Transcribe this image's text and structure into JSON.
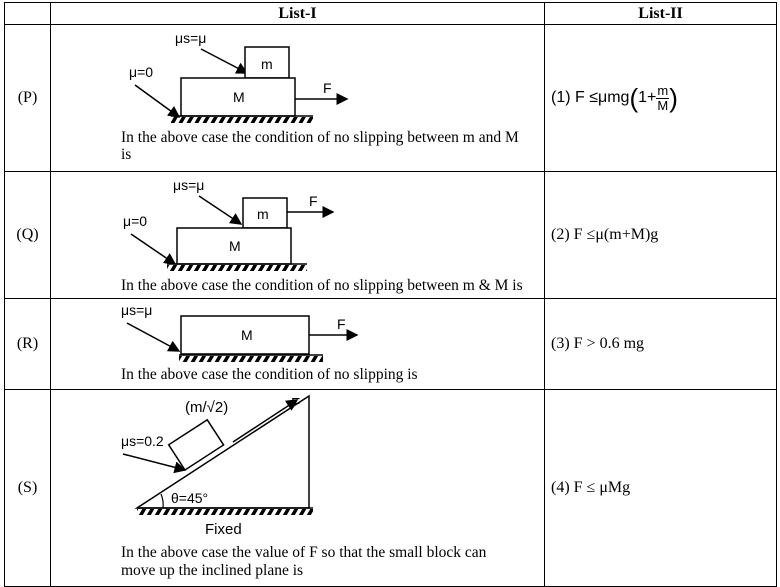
{
  "header": {
    "col1": "List-I",
    "col2": "List-II"
  },
  "rows": [
    {
      "label": "(P)",
      "figure": {
        "mu_top": "μs=μ",
        "mu_ground": "μ=0",
        "small": "m",
        "big": "M",
        "force": "F"
      },
      "caption_1": "In the above case the condition of no slipping between m and M",
      "caption_2": "is",
      "answer_prefix": "(1) F ≤μmg",
      "answer_frac_num": "m",
      "answer_frac_den": "M",
      "answer_open": "1+"
    },
    {
      "label": "(Q)",
      "figure": {
        "mu_top": "μs=μ",
        "mu_ground": "μ=0",
        "small": "m",
        "big": "M",
        "force": "F"
      },
      "caption_1": "In the above case the condition of no slipping between m & M is",
      "answer": "(2) F ≤μ(m+M)g"
    },
    {
      "label": "(R)",
      "figure": {
        "mu_top": "μs=μ",
        "big": "M",
        "force": "F"
      },
      "caption_1": "In the above case the condition of no slipping is",
      "answer": "(3) F > 0.6 mg"
    },
    {
      "label": "(S)",
      "figure": {
        "mass": "(m/√2)",
        "force": "F",
        "mu": "μs=0.2",
        "angle": "θ=45°",
        "fixed": "Fixed"
      },
      "caption_1": "In the above case the value of F so that the small block can",
      "caption_2": "move up the inclined plane is",
      "answer": "(4) F ≤ μMg"
    }
  ]
}
